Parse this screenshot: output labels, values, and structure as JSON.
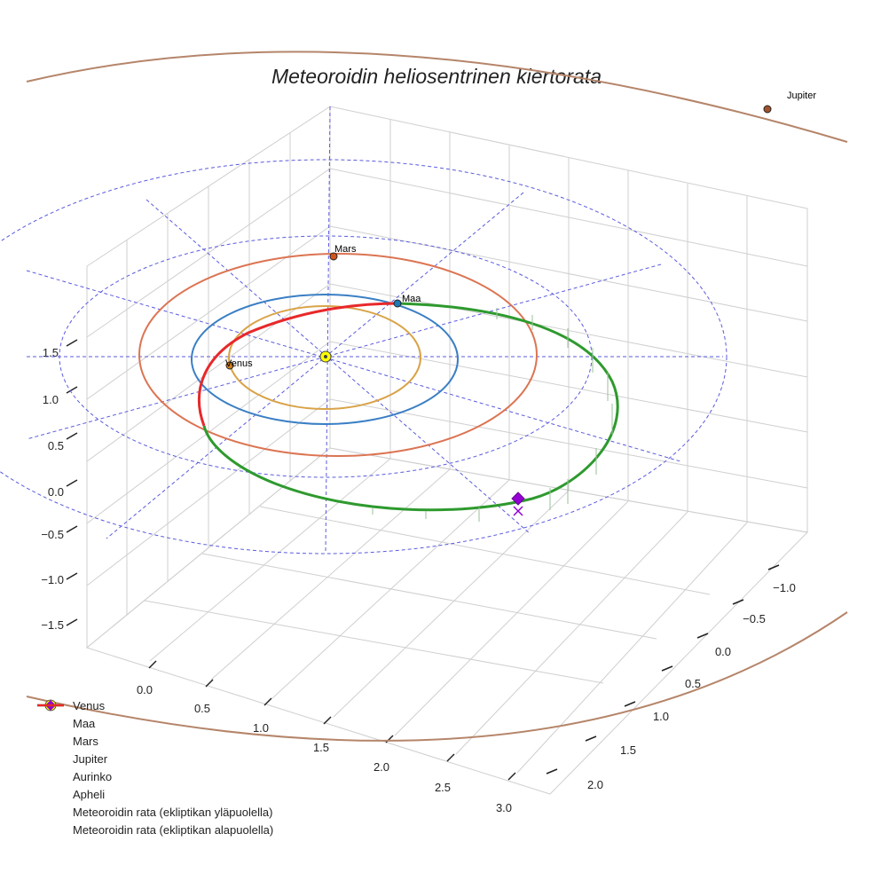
{
  "chart_data": {
    "type": "line",
    "title": "Meteoroidin heliosentrinen kiertorata",
    "axes": {
      "x_ticks": [
        "0.0",
        "0.5",
        "1.0",
        "1.5",
        "2.0",
        "2.5",
        "3.0"
      ],
      "y_ticks": [
        "−1.0",
        "−0.5",
        "0.0",
        "0.5",
        "1.0",
        "1.5",
        "2.0"
      ],
      "z_ticks": [
        "1.5",
        "1.0",
        "0.5",
        "0.0",
        "−0.5",
        "−1.0",
        "−1.5"
      ]
    },
    "bodies": [
      {
        "name": "Venus",
        "label": "Venus",
        "orbit_radius_au": 0.72,
        "color": "#d4a04a",
        "orbit_color": "#d9a348"
      },
      {
        "name": "Maa",
        "label": "Maa",
        "orbit_radius_au": 1.0,
        "color": "#1f77b4",
        "orbit_color": "#3a7fc4"
      },
      {
        "name": "Mars",
        "label": "Mars",
        "orbit_radius_au": 1.52,
        "color": "#d2541e",
        "orbit_color": "#dc7452"
      },
      {
        "name": "Jupiter",
        "label": "Jupiter",
        "orbit_radius_au": 5.2,
        "color": "#a0522d",
        "orbit_color": "#b5856a"
      }
    ],
    "sun": {
      "label": "Aurinko",
      "color": "#ffff00"
    },
    "meteoroid": {
      "above_label": "Meteoroidin rata (ekliptikan yläpuolella)",
      "below_label": "Meteoroidin rata (ekliptikan alapuolella)",
      "above_color": "#2e9a2e",
      "below_color": "#e8282a",
      "aphelion_label": "Apheli",
      "aphelion_color": "#9400d3"
    }
  },
  "legend": [
    {
      "label": "Venus",
      "kind": "dot",
      "color": "#d07d1a"
    },
    {
      "label": "Maa",
      "kind": "dot",
      "color": "#1f77b4"
    },
    {
      "label": "Mars",
      "kind": "dot",
      "color": "#d2541e"
    },
    {
      "label": "Jupiter",
      "kind": "dot",
      "color": "#a0522d"
    },
    {
      "label": "Aurinko",
      "kind": "sun",
      "color": "#ffff00"
    },
    {
      "label": "Apheli",
      "kind": "diamond",
      "color": "#9400d3"
    },
    {
      "label": "Meteoroidin rata (ekliptikan yläpuolella)",
      "kind": "line",
      "color": "#2e9a2e"
    },
    {
      "label": "Meteoroidin rata (ekliptikan alapuolella)",
      "kind": "line",
      "color": "#e8282a"
    }
  ]
}
